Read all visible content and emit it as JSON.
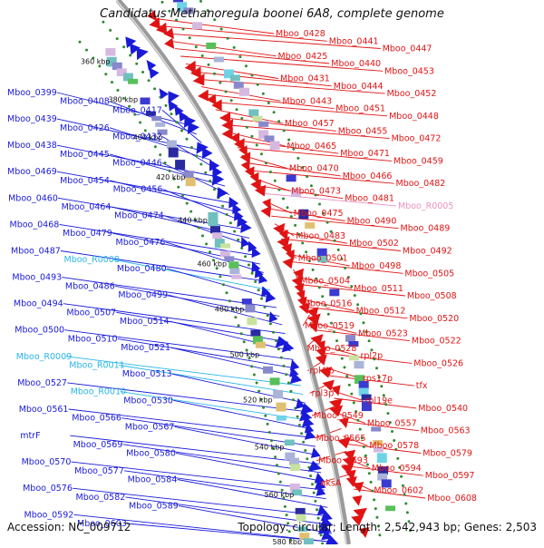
{
  "title": "Candidatus Methanoregula boonei 6A8, complete genome",
  "accession": "Accession: NC_009712",
  "summary": "Topology: circular; Length: 2,542,943 bp; Genes: 2,503",
  "colors": {
    "forward_label": "#1a1ad9",
    "reverse_label": "#e01414",
    "rna_forward": "#29b6e6",
    "rna_reverse": "#e892c2",
    "backbone": "#9a9a9a",
    "dots": "#2e8b2e"
  },
  "diagram": {
    "ticks": [
      "360 kbp",
      "380 kbp",
      "400 kbp",
      "420 kbp",
      "440 kbp",
      "460 kbp",
      "480 kbp",
      "500 kbp",
      "520 kbp",
      "540 kbp",
      "560 kbp",
      "580 kbp"
    ],
    "left_labels": [
      {
        "text": "Mboo_0399",
        "kind": "gene"
      },
      {
        "text": "Mboo_0408",
        "kind": "gene"
      },
      {
        "text": "Mboo_0417",
        "kind": "gene"
      },
      {
        "text": "Mboo_0439",
        "kind": "gene"
      },
      {
        "text": "Mboo_0426",
        "kind": "gene"
      },
      {
        "text": "Mboo_0432",
        "kind": "gene"
      },
      {
        "text": "Mboo_0438",
        "kind": "gene"
      },
      {
        "text": "Mboo_0445",
        "kind": "gene"
      },
      {
        "text": "Mboo_0446",
        "kind": "gene"
      },
      {
        "text": "Mboo_0469",
        "kind": "gene"
      },
      {
        "text": "Mboo_0454",
        "kind": "gene"
      },
      {
        "text": "Mboo_0456",
        "kind": "gene"
      },
      {
        "text": "Mboo_0460",
        "kind": "gene"
      },
      {
        "text": "Mboo_0464",
        "kind": "gene"
      },
      {
        "text": "Mboo_0474",
        "kind": "gene"
      },
      {
        "text": "Mboo_0468",
        "kind": "gene"
      },
      {
        "text": "Mboo_0479",
        "kind": "gene"
      },
      {
        "text": "Mboo_0476",
        "kind": "gene"
      },
      {
        "text": "Mboo_0487",
        "kind": "gene"
      },
      {
        "text": "Mboo_R0008",
        "kind": "rna"
      },
      {
        "text": "Mboo_0480",
        "kind": "gene"
      },
      {
        "text": "Mboo_0493",
        "kind": "gene"
      },
      {
        "text": "Mboo_0486",
        "kind": "gene"
      },
      {
        "text": "Mboo_0499",
        "kind": "gene"
      },
      {
        "text": "Mboo_0494",
        "kind": "gene"
      },
      {
        "text": "Mboo_0507",
        "kind": "gene"
      },
      {
        "text": "Mboo_0514",
        "kind": "gene"
      },
      {
        "text": "Mboo_0500",
        "kind": "gene"
      },
      {
        "text": "Mboo_0510",
        "kind": "gene"
      },
      {
        "text": "Mboo_0521",
        "kind": "gene"
      },
      {
        "text": "Mboo_R0009",
        "kind": "rna"
      },
      {
        "text": "Mboo_R0011",
        "kind": "rna"
      },
      {
        "text": "Mboo_0513",
        "kind": "gene"
      },
      {
        "text": "Mboo_0527",
        "kind": "gene"
      },
      {
        "text": "Mboo_R0010",
        "kind": "rna"
      },
      {
        "text": "Mboo_0530",
        "kind": "gene"
      },
      {
        "text": "Mboo_0561",
        "kind": "gene"
      },
      {
        "text": "Mboo_0566",
        "kind": "gene"
      },
      {
        "text": "Mboo_0567",
        "kind": "gene"
      },
      {
        "text": "mtrF",
        "kind": "gene"
      },
      {
        "text": "Mboo_0569",
        "kind": "gene"
      },
      {
        "text": "Mboo_0580",
        "kind": "gene"
      },
      {
        "text": "Mboo_0570",
        "kind": "gene"
      },
      {
        "text": "Mboo_0577",
        "kind": "gene"
      },
      {
        "text": "Mboo_0584",
        "kind": "gene"
      },
      {
        "text": "Mboo_0576",
        "kind": "gene"
      },
      {
        "text": "Mboo_0582",
        "kind": "gene"
      },
      {
        "text": "Mboo_0589",
        "kind": "gene"
      },
      {
        "text": "Mboo_0592",
        "kind": "gene"
      },
      {
        "text": "Mboo_0603",
        "kind": "gene"
      }
    ],
    "right_labels": [
      {
        "text": "Mboo_0428",
        "kind": "gene"
      },
      {
        "text": "Mboo_0441",
        "kind": "gene"
      },
      {
        "text": "Mboo_0447",
        "kind": "gene"
      },
      {
        "text": "Mboo_0425",
        "kind": "gene"
      },
      {
        "text": "Mboo_0440",
        "kind": "gene"
      },
      {
        "text": "Mboo_0453",
        "kind": "gene"
      },
      {
        "text": "Mboo_0431",
        "kind": "gene"
      },
      {
        "text": "Mboo_0444",
        "kind": "gene"
      },
      {
        "text": "Mboo_0452",
        "kind": "gene"
      },
      {
        "text": "Mboo_0443",
        "kind": "gene"
      },
      {
        "text": "Mboo_0451",
        "kind": "gene"
      },
      {
        "text": "Mboo_0448",
        "kind": "gene"
      },
      {
        "text": "Mboo_0457",
        "kind": "gene"
      },
      {
        "text": "Mboo_0455",
        "kind": "gene"
      },
      {
        "text": "Mboo_0472",
        "kind": "gene"
      },
      {
        "text": "Mboo_0465",
        "kind": "gene"
      },
      {
        "text": "Mboo_0471",
        "kind": "gene"
      },
      {
        "text": "Mboo_0459",
        "kind": "gene"
      },
      {
        "text": "Mboo_0470",
        "kind": "gene"
      },
      {
        "text": "Mboo_0466",
        "kind": "gene"
      },
      {
        "text": "Mboo_0482",
        "kind": "gene"
      },
      {
        "text": "Mboo_0473",
        "kind": "gene"
      },
      {
        "text": "Mboo_0481",
        "kind": "gene"
      },
      {
        "text": "Mboo_R0005",
        "kind": "rna"
      },
      {
        "text": "Mboo_0475",
        "kind": "gene"
      },
      {
        "text": "Mboo_0490",
        "kind": "gene"
      },
      {
        "text": "Mboo_0489",
        "kind": "gene"
      },
      {
        "text": "Mboo_0483",
        "kind": "gene"
      },
      {
        "text": "Mboo_0502",
        "kind": "gene"
      },
      {
        "text": "Mboo_0492",
        "kind": "gene"
      },
      {
        "text": "Mboo_0501",
        "kind": "gene"
      },
      {
        "text": "Mboo_0498",
        "kind": "gene"
      },
      {
        "text": "Mboo_0505",
        "kind": "gene"
      },
      {
        "text": "Mboo_0504",
        "kind": "gene"
      },
      {
        "text": "Mboo_0511",
        "kind": "gene"
      },
      {
        "text": "Mboo_0508",
        "kind": "gene"
      },
      {
        "text": "Mboo_0516",
        "kind": "gene"
      },
      {
        "text": "Mboo_0512",
        "kind": "gene"
      },
      {
        "text": "Mboo_0520",
        "kind": "gene"
      },
      {
        "text": "Mboo_0519",
        "kind": "gene"
      },
      {
        "text": "Mboo_0523",
        "kind": "gene"
      },
      {
        "text": "Mboo_0522",
        "kind": "gene"
      },
      {
        "text": "Mboo_0528",
        "kind": "gene"
      },
      {
        "text": "rpl2p",
        "kind": "gene"
      },
      {
        "text": "Mboo_0526",
        "kind": "gene"
      },
      {
        "text": "rpl4lp",
        "kind": "gene"
      },
      {
        "text": "rps17p",
        "kind": "gene"
      },
      {
        "text": "tfx",
        "kind": "gene"
      },
      {
        "text": "rpl3p",
        "kind": "gene"
      },
      {
        "text": "rpl19e",
        "kind": "gene"
      },
      {
        "text": "Mboo_0540",
        "kind": "gene"
      },
      {
        "text": "Mboo_0549",
        "kind": "gene"
      },
      {
        "text": "Mboo_0557",
        "kind": "gene"
      },
      {
        "text": "Mboo_0563",
        "kind": "gene"
      },
      {
        "text": "Mboo_0565",
        "kind": "gene"
      },
      {
        "text": "Mboo_0578",
        "kind": "gene"
      },
      {
        "text": "Mboo_0579",
        "kind": "gene"
      },
      {
        "text": "Mboo_0593",
        "kind": "gene"
      },
      {
        "text": "Mboo_0594",
        "kind": "gene"
      },
      {
        "text": "Mboo_0597",
        "kind": "gene"
      },
      {
        "text": "aksA",
        "kind": "gene"
      },
      {
        "text": "Mboo_0602",
        "kind": "gene"
      },
      {
        "text": "Mboo_0608",
        "kind": "gene"
      }
    ]
  }
}
